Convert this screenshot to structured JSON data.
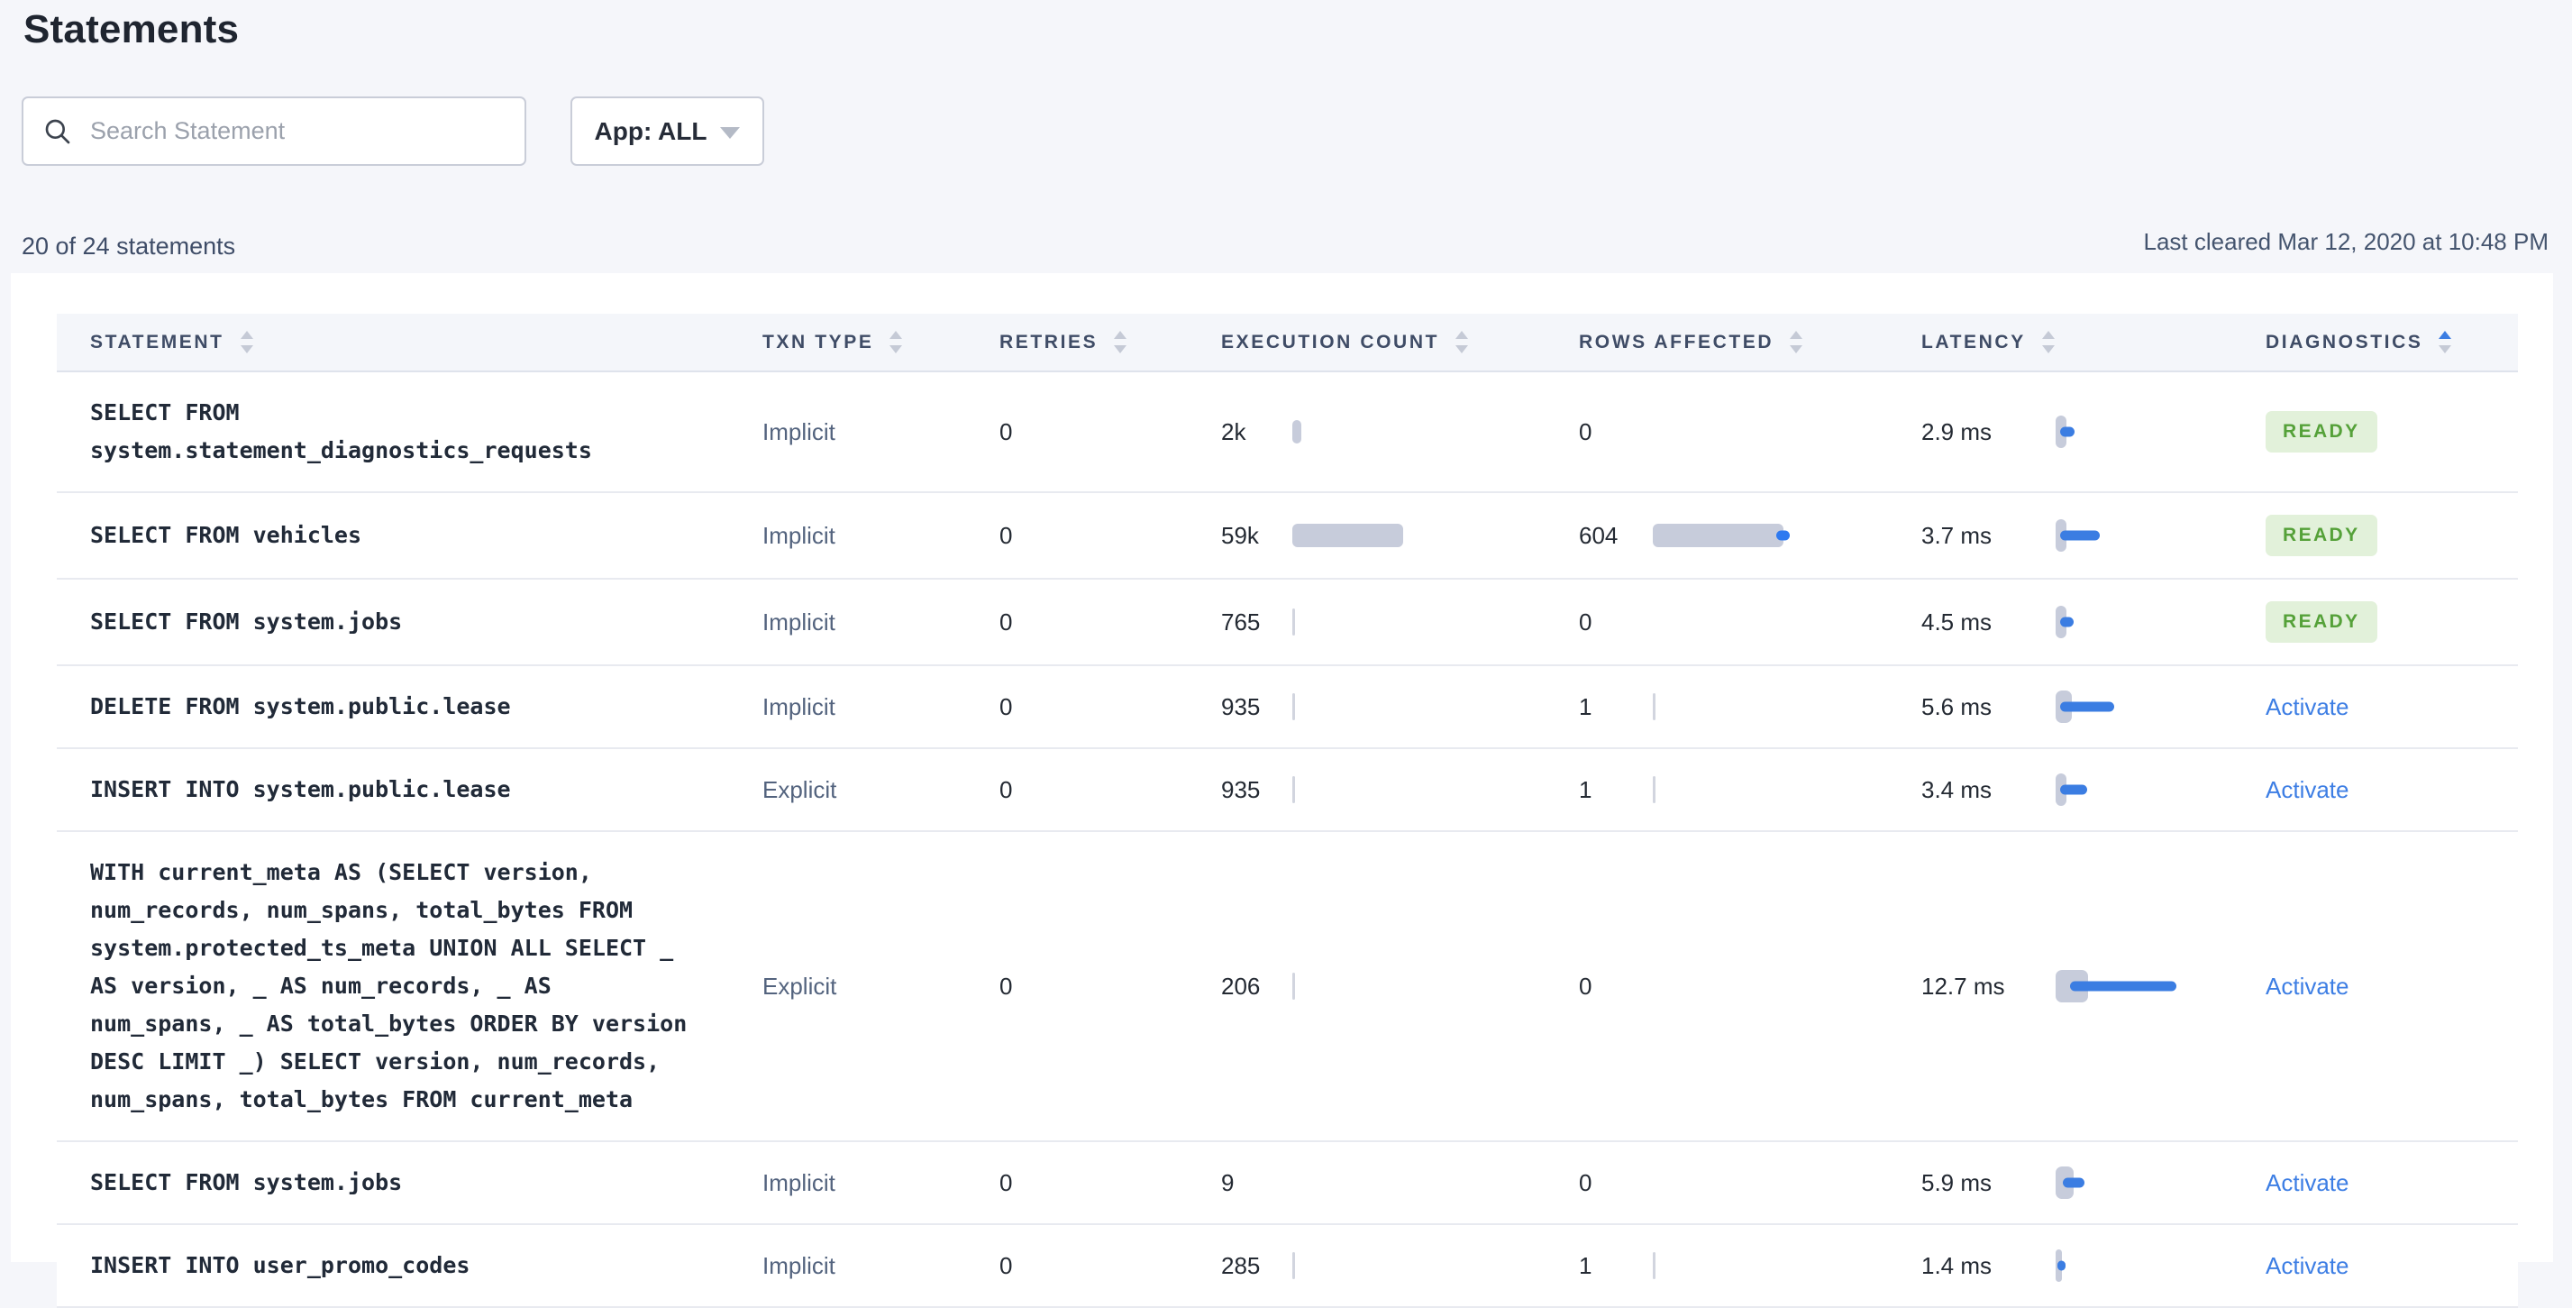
{
  "page": {
    "title": "Statements"
  },
  "filters": {
    "search_placeholder": "Search Statement",
    "app_filter_label": "App: ALL"
  },
  "summary": {
    "count_text": "20 of 24 statements",
    "last_cleared": "Last cleared Mar 12, 2020 at 10:48 PM"
  },
  "colors": {
    "accent_blue": "#3b7de2",
    "bar_gray": "#c7ccdb",
    "ready_bg": "#e2f1da",
    "ready_text": "#55a139",
    "link_blue": "#3d7ee4",
    "page_bg": "#f5f6fa"
  },
  "table": {
    "columns": [
      {
        "label": "STATEMENT",
        "sorted": null
      },
      {
        "label": "TXN TYPE",
        "sorted": null
      },
      {
        "label": "RETRIES",
        "sorted": null
      },
      {
        "label": "EXECUTION COUNT",
        "sorted": null
      },
      {
        "label": "ROWS AFFECTED",
        "sorted": null
      },
      {
        "label": "LATENCY",
        "sorted": null
      },
      {
        "label": "DIAGNOSTICS",
        "sorted": "asc"
      }
    ],
    "rows": [
      {
        "statement": "SELECT FROM\nsystem.statement_diagnostics_requests",
        "txn_type": "Implicit",
        "retries": "0",
        "execution_count": "2k",
        "exec_bar": {
          "type": "capsule",
          "w": 10
        },
        "rows_affected": "0",
        "rows_bar": null,
        "latency": "2.9 ms",
        "latency_bar": {
          "track": 12,
          "bar": 16,
          "off": 5
        },
        "diagnostics": {
          "kind": "badge",
          "label": "READY"
        }
      },
      {
        "statement": "SELECT FROM vehicles",
        "txn_type": "Implicit",
        "retries": "0",
        "execution_count": "59k",
        "exec_bar": {
          "type": "bar",
          "w": 123
        },
        "rows_affected": "604",
        "rows_bar": {
          "type": "bar",
          "w": 145,
          "dot": true
        },
        "latency": "3.7 ms",
        "latency_bar": {
          "track": 12,
          "bar": 44,
          "off": 5
        },
        "diagnostics": {
          "kind": "badge",
          "label": "READY"
        }
      },
      {
        "statement": "SELECT FROM system.jobs",
        "txn_type": "Implicit",
        "retries": "0",
        "execution_count": "765",
        "exec_bar": {
          "type": "tick"
        },
        "rows_affected": "0",
        "rows_bar": null,
        "latency": "4.5 ms",
        "latency_bar": {
          "track": 12,
          "bar": 15,
          "off": 5
        },
        "diagnostics": {
          "kind": "badge",
          "label": "READY"
        }
      },
      {
        "statement": "DELETE FROM system.public.lease",
        "txn_type": "Implicit",
        "retries": "0",
        "execution_count": "935",
        "exec_bar": {
          "type": "tick"
        },
        "rows_affected": "1",
        "rows_bar": {
          "type": "tick"
        },
        "latency": "5.6 ms",
        "latency_bar": {
          "track": 18,
          "bar": 60,
          "off": 5
        },
        "diagnostics": {
          "kind": "link",
          "label": "Activate"
        }
      },
      {
        "statement": "INSERT INTO system.public.lease",
        "txn_type": "Explicit",
        "retries": "0",
        "execution_count": "935",
        "exec_bar": {
          "type": "tick"
        },
        "rows_affected": "1",
        "rows_bar": {
          "type": "tick"
        },
        "latency": "3.4 ms",
        "latency_bar": {
          "track": 12,
          "bar": 30,
          "off": 5
        },
        "diagnostics": {
          "kind": "link",
          "label": "Activate"
        }
      },
      {
        "statement": "WITH current_meta AS (SELECT version,\nnum_records, num_spans, total_bytes FROM\nsystem.protected_ts_meta UNION ALL SELECT _\nAS version, _ AS num_records, _ AS\nnum_spans, _ AS total_bytes ORDER BY version\nDESC LIMIT _) SELECT version, num_records,\nnum_spans, total_bytes FROM current_meta",
        "txn_type": "Explicit",
        "retries": "0",
        "execution_count": "206",
        "exec_bar": {
          "type": "tick"
        },
        "rows_affected": "0",
        "rows_bar": null,
        "latency": "12.7 ms",
        "latency_bar": {
          "track": 36,
          "bar": 118,
          "off": 16
        },
        "diagnostics": {
          "kind": "link",
          "label": "Activate"
        }
      },
      {
        "statement": "SELECT FROM system.jobs",
        "txn_type": "Implicit",
        "retries": "0",
        "execution_count": "9",
        "exec_bar": null,
        "rows_affected": "0",
        "rows_bar": null,
        "latency": "5.9 ms",
        "latency_bar": {
          "track": 20,
          "bar": 24,
          "off": 8
        },
        "diagnostics": {
          "kind": "link",
          "label": "Activate"
        }
      },
      {
        "statement": "INSERT INTO user_promo_codes",
        "txn_type": "Implicit",
        "retries": "0",
        "execution_count": "285",
        "exec_bar": {
          "type": "tick"
        },
        "rows_affected": "1",
        "rows_bar": {
          "type": "tick"
        },
        "latency": "1.4 ms",
        "latency_bar": {
          "track": 7,
          "bar": 9,
          "off": 2
        },
        "diagnostics": {
          "kind": "link",
          "label": "Activate"
        }
      }
    ]
  }
}
